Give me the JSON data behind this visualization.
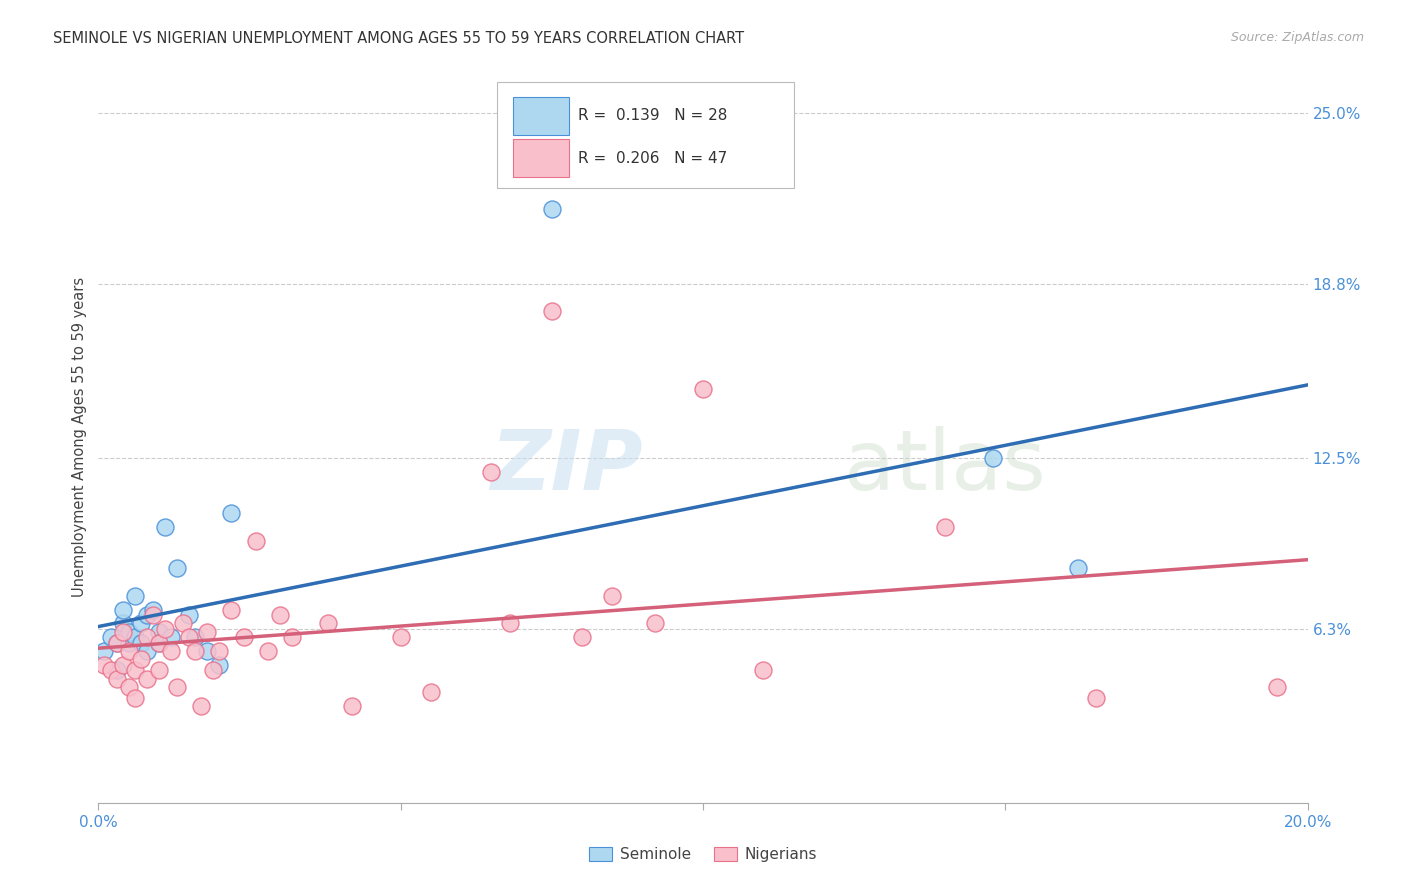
{
  "title": "SEMINOLE VS NIGERIAN UNEMPLOYMENT AMONG AGES 55 TO 59 YEARS CORRELATION CHART",
  "source": "Source: ZipAtlas.com",
  "ylabel": "Unemployment Among Ages 55 to 59 years",
  "xlim": [
    0.0,
    0.2
  ],
  "ylim": [
    0.0,
    0.265
  ],
  "yticks": [
    0.0,
    0.063,
    0.125,
    0.188,
    0.25
  ],
  "ytick_labels": [
    "",
    "6.3%",
    "12.5%",
    "18.8%",
    "25.0%"
  ],
  "xticks": [
    0.0,
    0.05,
    0.1,
    0.15,
    0.2
  ],
  "xtick_labels": [
    "0.0%",
    "",
    "",
    "",
    "20.0%"
  ],
  "seminole_R": "0.139",
  "seminole_N": "28",
  "nigerian_R": "0.206",
  "nigerian_N": "47",
  "seminole_color": "#add8f0",
  "nigerian_color": "#f9c0cc",
  "seminole_edge_color": "#4a90d9",
  "nigerian_edge_color": "#e8708a",
  "seminole_line_color": "#2e6db4",
  "nigerian_line_color": "#d4607a",
  "background_color": "#ffffff",
  "grid_color": "#cccccc",
  "seminole_x": [
    0.001,
    0.002,
    0.003,
    0.003,
    0.004,
    0.004,
    0.005,
    0.005,
    0.006,
    0.006,
    0.007,
    0.007,
    0.008,
    0.008,
    0.009,
    0.01,
    0.01,
    0.011,
    0.012,
    0.013,
    0.015,
    0.016,
    0.018,
    0.02,
    0.022,
    0.075,
    0.148,
    0.162
  ],
  "seminole_y": [
    0.055,
    0.06,
    0.048,
    0.058,
    0.065,
    0.07,
    0.058,
    0.062,
    0.075,
    0.06,
    0.065,
    0.058,
    0.068,
    0.055,
    0.07,
    0.062,
    0.058,
    0.1,
    0.06,
    0.085,
    0.068,
    0.06,
    0.055,
    0.05,
    0.105,
    0.215,
    0.125,
    0.085
  ],
  "nigerian_x": [
    0.001,
    0.002,
    0.003,
    0.003,
    0.004,
    0.004,
    0.005,
    0.005,
    0.006,
    0.006,
    0.007,
    0.008,
    0.008,
    0.009,
    0.01,
    0.01,
    0.011,
    0.012,
    0.013,
    0.014,
    0.015,
    0.016,
    0.017,
    0.018,
    0.019,
    0.02,
    0.022,
    0.024,
    0.026,
    0.028,
    0.03,
    0.032,
    0.038,
    0.042,
    0.05,
    0.055,
    0.065,
    0.068,
    0.075,
    0.08,
    0.085,
    0.092,
    0.1,
    0.11,
    0.14,
    0.165,
    0.195
  ],
  "nigerian_y": [
    0.05,
    0.048,
    0.045,
    0.058,
    0.05,
    0.062,
    0.042,
    0.055,
    0.038,
    0.048,
    0.052,
    0.06,
    0.045,
    0.068,
    0.058,
    0.048,
    0.063,
    0.055,
    0.042,
    0.065,
    0.06,
    0.055,
    0.035,
    0.062,
    0.048,
    0.055,
    0.07,
    0.06,
    0.095,
    0.055,
    0.068,
    0.06,
    0.065,
    0.035,
    0.06,
    0.04,
    0.12,
    0.065,
    0.178,
    0.06,
    0.075,
    0.065,
    0.15,
    0.048,
    0.1,
    0.038,
    0.042
  ]
}
